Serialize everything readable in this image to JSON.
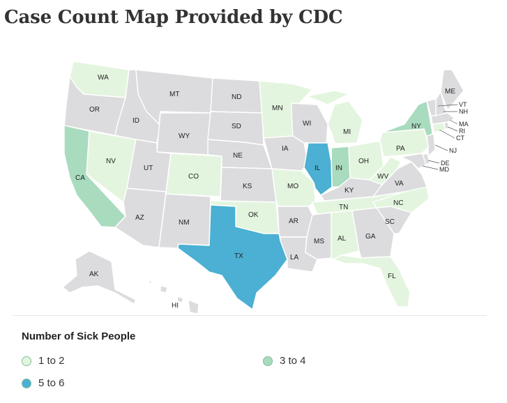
{
  "title": "Case Count Map Provided by CDC",
  "colors": {
    "none": "#dcdcdf",
    "low": "#e4f5df",
    "mid": "#a9dbbf",
    "high": "#4bb0d3"
  },
  "states": [
    {
      "abbr": "WA",
      "count_range": "1 to 2"
    },
    {
      "abbr": "OR",
      "count_range": null
    },
    {
      "abbr": "CA",
      "count_range": "3 to 4"
    },
    {
      "abbr": "NV",
      "count_range": "1 to 2"
    },
    {
      "abbr": "ID",
      "count_range": null
    },
    {
      "abbr": "MT",
      "count_range": null
    },
    {
      "abbr": "WY",
      "count_range": null
    },
    {
      "abbr": "UT",
      "count_range": null
    },
    {
      "abbr": "AZ",
      "count_range": null
    },
    {
      "abbr": "CO",
      "count_range": "1 to 2"
    },
    {
      "abbr": "NM",
      "count_range": null
    },
    {
      "abbr": "ND",
      "count_range": null
    },
    {
      "abbr": "SD",
      "count_range": null
    },
    {
      "abbr": "NE",
      "count_range": null
    },
    {
      "abbr": "KS",
      "count_range": null
    },
    {
      "abbr": "OK",
      "count_range": "1 to 2"
    },
    {
      "abbr": "TX",
      "count_range": "5 to 6"
    },
    {
      "abbr": "MN",
      "count_range": "1 to 2"
    },
    {
      "abbr": "IA",
      "count_range": null
    },
    {
      "abbr": "MO",
      "count_range": "1 to 2"
    },
    {
      "abbr": "AR",
      "count_range": null
    },
    {
      "abbr": "LA",
      "count_range": null
    },
    {
      "abbr": "WI",
      "count_range": null
    },
    {
      "abbr": "IL",
      "count_range": "5 to 6"
    },
    {
      "abbr": "MI",
      "count_range": "1 to 2"
    },
    {
      "abbr": "IN",
      "count_range": "3 to 4"
    },
    {
      "abbr": "OH",
      "count_range": "1 to 2"
    },
    {
      "abbr": "KY",
      "count_range": null
    },
    {
      "abbr": "TN",
      "count_range": "1 to 2"
    },
    {
      "abbr": "MS",
      "count_range": null
    },
    {
      "abbr": "AL",
      "count_range": "1 to 2"
    },
    {
      "abbr": "GA",
      "count_range": null
    },
    {
      "abbr": "FL",
      "count_range": "1 to 2"
    },
    {
      "abbr": "SC",
      "count_range": null
    },
    {
      "abbr": "NC",
      "count_range": "1 to 2"
    },
    {
      "abbr": "VA",
      "count_range": null
    },
    {
      "abbr": "WV",
      "count_range": "1 to 2"
    },
    {
      "abbr": "PA",
      "count_range": "1 to 2"
    },
    {
      "abbr": "NY",
      "count_range": "3 to 4"
    },
    {
      "abbr": "ME",
      "count_range": null
    },
    {
      "abbr": "VT",
      "count_range": null
    },
    {
      "abbr": "NH",
      "count_range": null
    },
    {
      "abbr": "MA",
      "count_range": null
    },
    {
      "abbr": "RI",
      "count_range": null
    },
    {
      "abbr": "CT",
      "count_range": "1 to 2"
    },
    {
      "abbr": "NJ",
      "count_range": null
    },
    {
      "abbr": "DE",
      "count_range": null
    },
    {
      "abbr": "MD",
      "count_range": null
    },
    {
      "abbr": "AK",
      "count_range": null
    },
    {
      "abbr": "HI",
      "count_range": null
    }
  ],
  "legend": {
    "title": "Number of Sick People",
    "items": [
      {
        "label": "1 to 2",
        "color": "#e4f5df"
      },
      {
        "label": "3 to 4",
        "color": "#a9dbbf"
      },
      {
        "label": "5 to 6",
        "color": "#4bb0d3"
      }
    ]
  }
}
